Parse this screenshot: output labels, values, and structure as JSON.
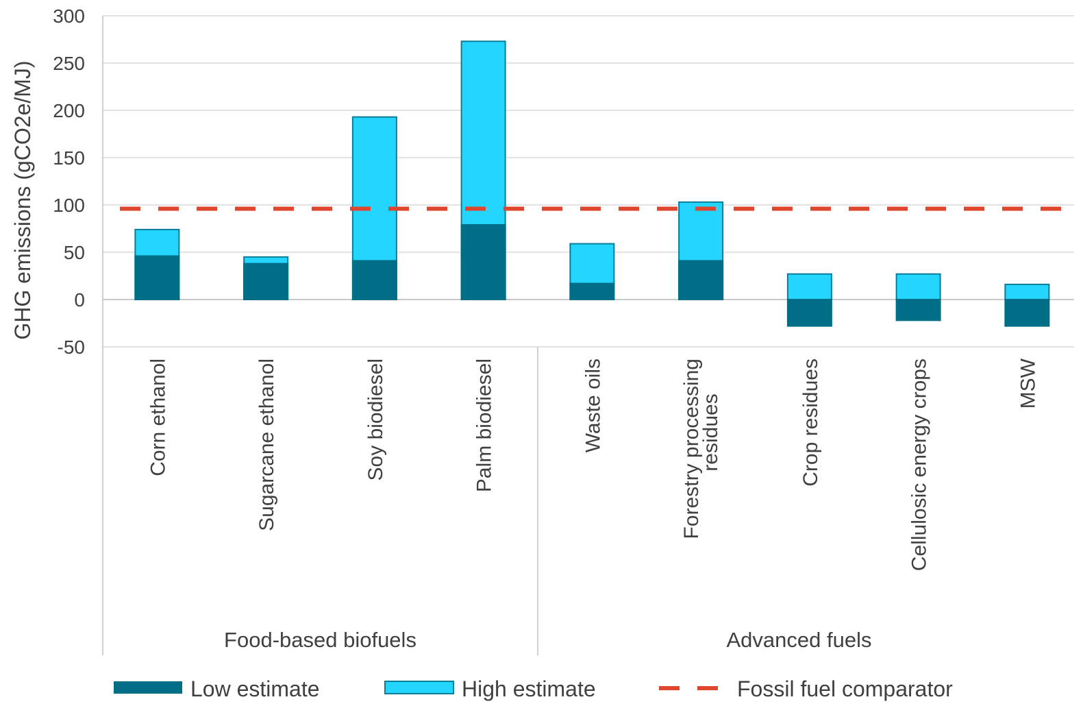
{
  "chart_data": {
    "type": "bar",
    "ylabel": "GHG emissions (gCO2e/MJ)",
    "ylim": [
      -50,
      300
    ],
    "yticks": [
      "300",
      "250",
      "200",
      "150",
      "100",
      "50",
      "0",
      "-50"
    ],
    "grid": true,
    "groups": [
      {
        "label": "Food-based biofuels",
        "count": 4
      },
      {
        "label": "Advanced fuels",
        "count": 5
      }
    ],
    "categories": [
      [
        "Corn ethanol"
      ],
      [
        "Sugarcane ethanol"
      ],
      [
        "Soy biodiesel"
      ],
      [
        "Palm biodiesel"
      ],
      [
        "Waste oils"
      ],
      [
        "Forestry processing",
        "residues"
      ],
      [
        "Crop residues"
      ],
      [
        "Cellulosic energy crops"
      ],
      [
        "MSW"
      ]
    ],
    "series": [
      {
        "name": "Low estimate",
        "color": "#006e87",
        "values": [
          46,
          38,
          41,
          79,
          17,
          41,
          -28,
          -22,
          -28
        ]
      },
      {
        "name": "High estimate",
        "color": "#24d6ff",
        "values": [
          74,
          45,
          193,
          273,
          59,
          103,
          27,
          27,
          16
        ]
      }
    ],
    "reference_line": {
      "name": "Fossil fuel comparator",
      "color": "#e0462d",
      "value": 96
    },
    "legend": "bottom"
  }
}
